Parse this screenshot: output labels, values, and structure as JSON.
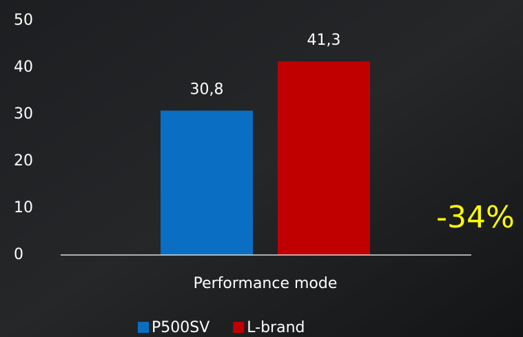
{
  "chart_data": {
    "type": "bar",
    "categories": [
      "Performance mode"
    ],
    "series": [
      {
        "name": "P500SV",
        "color": "#0a6fc2",
        "values": [
          30.8
        ],
        "value_labels": [
          "30,8"
        ]
      },
      {
        "name": "L-brand",
        "color": "#c00000",
        "values": [
          41.3
        ],
        "value_labels": [
          "41,3"
        ]
      }
    ],
    "ylim": [
      0,
      50
    ],
    "yticks": [
      0,
      10,
      20,
      30,
      40,
      50
    ],
    "annotation": "-34%",
    "annotation_color": "#ffff00"
  }
}
